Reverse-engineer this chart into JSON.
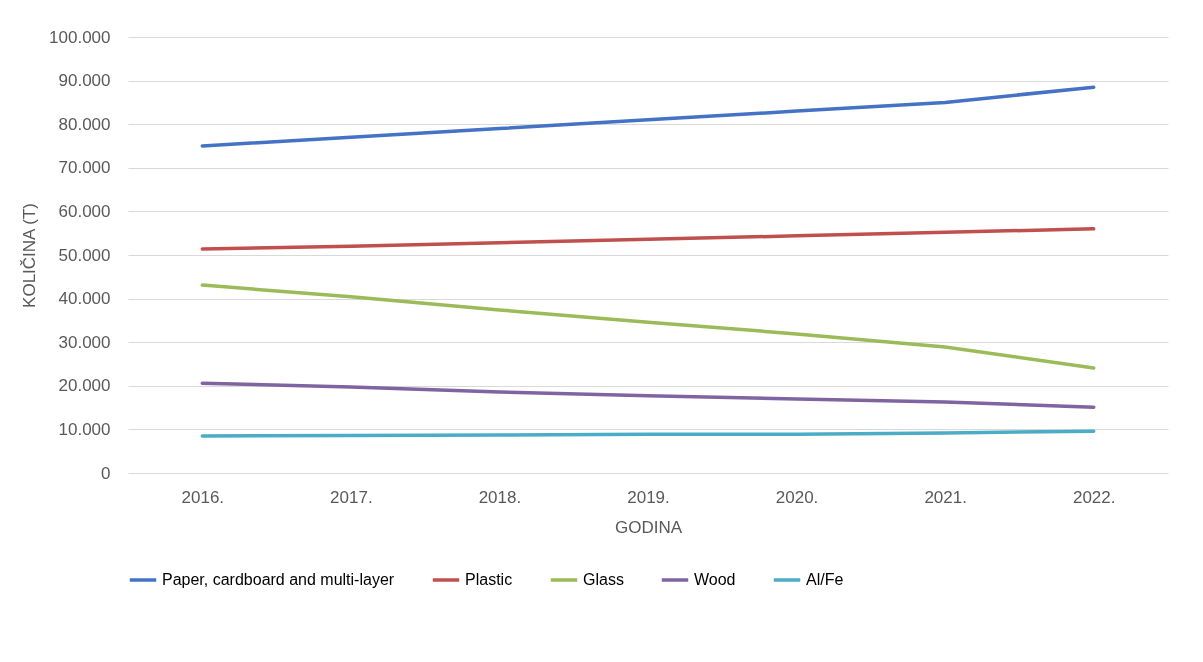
{
  "chart_data": {
    "type": "line",
    "xlabel": "GODINA",
    "ylabel": "KOLIČINA (T)",
    "categories": [
      "2016.",
      "2017.",
      "2018.",
      "2019.",
      "2020.",
      "2021.",
      "2022."
    ],
    "series": [
      {
        "name": "Paper, cardboard and multi-layer",
        "color": "#4472c4",
        "values": [
          75000,
          77000,
          79000,
          81000,
          83000,
          85000,
          88500
        ]
      },
      {
        "name": "Plastic",
        "color": "#c0504d",
        "values": [
          51400,
          52000,
          52800,
          53600,
          54400,
          55200,
          56000
        ]
      },
      {
        "name": "Glass",
        "color": "#9bbb59",
        "values": [
          43100,
          40400,
          37400,
          34600,
          31900,
          28900,
          24100
        ]
      },
      {
        "name": "Wood",
        "color": "#8064a2",
        "values": [
          20600,
          19700,
          18600,
          17700,
          17000,
          16300,
          15100
        ]
      },
      {
        "name": "Al/Fe",
        "color": "#4bacc6",
        "values": [
          8500,
          8600,
          8700,
          8900,
          8900,
          9200,
          9600
        ]
      }
    ],
    "ylim": [
      0,
      100000
    ],
    "yticks": [
      {
        "value": 0,
        "label": "0"
      },
      {
        "value": 10000,
        "label": "10.000"
      },
      {
        "value": 20000,
        "label": "20.000"
      },
      {
        "value": 30000,
        "label": "30.000"
      },
      {
        "value": 40000,
        "label": "40.000"
      },
      {
        "value": 50000,
        "label": "50.000"
      },
      {
        "value": 60000,
        "label": "60.000"
      },
      {
        "value": 70000,
        "label": "70.000"
      },
      {
        "value": 80000,
        "label": "80.000"
      },
      {
        "value": 90000,
        "label": "90.000"
      },
      {
        "value": 100000,
        "label": "100.000"
      }
    ],
    "grid": "y",
    "legend": "bottom"
  }
}
